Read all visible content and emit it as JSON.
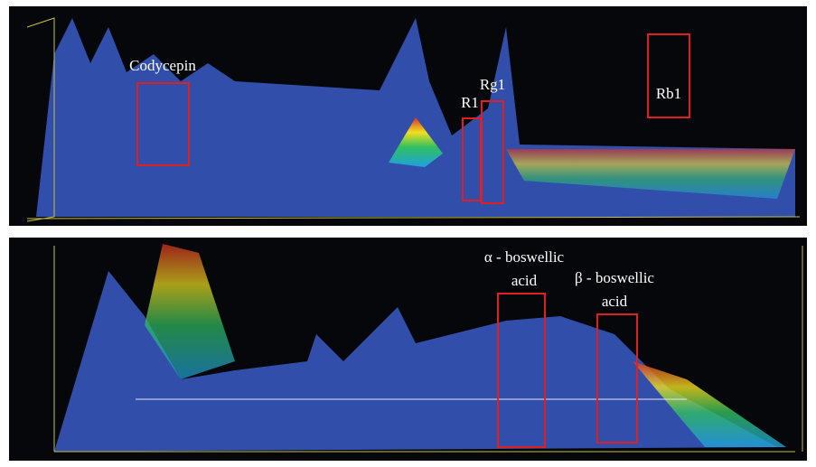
{
  "panels": [
    {
      "labels": [
        {
          "lines": [
            "Codycepin"
          ]
        },
        {
          "lines": [
            "R1"
          ]
        },
        {
          "lines": [
            "Rg1"
          ]
        },
        {
          "lines": [
            "Rb1"
          ]
        }
      ]
    },
    {
      "labels": [
        {
          "lines": [
            "α - boswellic",
            "acid"
          ]
        },
        {
          "lines": [
            "β - boswellic",
            "acid"
          ]
        }
      ]
    }
  ]
}
